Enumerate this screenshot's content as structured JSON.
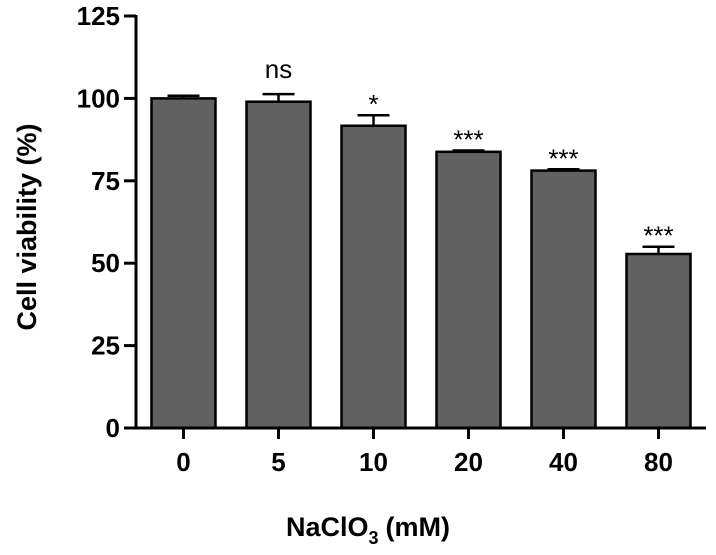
{
  "chart_data": {
    "type": "bar",
    "categories": [
      "0",
      "5",
      "10",
      "20",
      "40",
      "80"
    ],
    "values": [
      100,
      99,
      91.7,
      83.8,
      78.1,
      52.8
    ],
    "errors": [
      0.8,
      2.3,
      3.2,
      0.4,
      0.4,
      2.2
    ],
    "significance": [
      "",
      "ns",
      "*",
      "***",
      "***",
      "***"
    ],
    "xlabel": "NaClO",
    "xlabel_subscript": "3",
    "xlabel_unit": "(mM)",
    "ylabel": "Cell viability (%)",
    "ylim": [
      0,
      125
    ],
    "yticks": [
      "0",
      "25",
      "50",
      "75",
      "100",
      "125"
    ],
    "bar_color": "#616161",
    "grid": false,
    "legend": "none"
  }
}
